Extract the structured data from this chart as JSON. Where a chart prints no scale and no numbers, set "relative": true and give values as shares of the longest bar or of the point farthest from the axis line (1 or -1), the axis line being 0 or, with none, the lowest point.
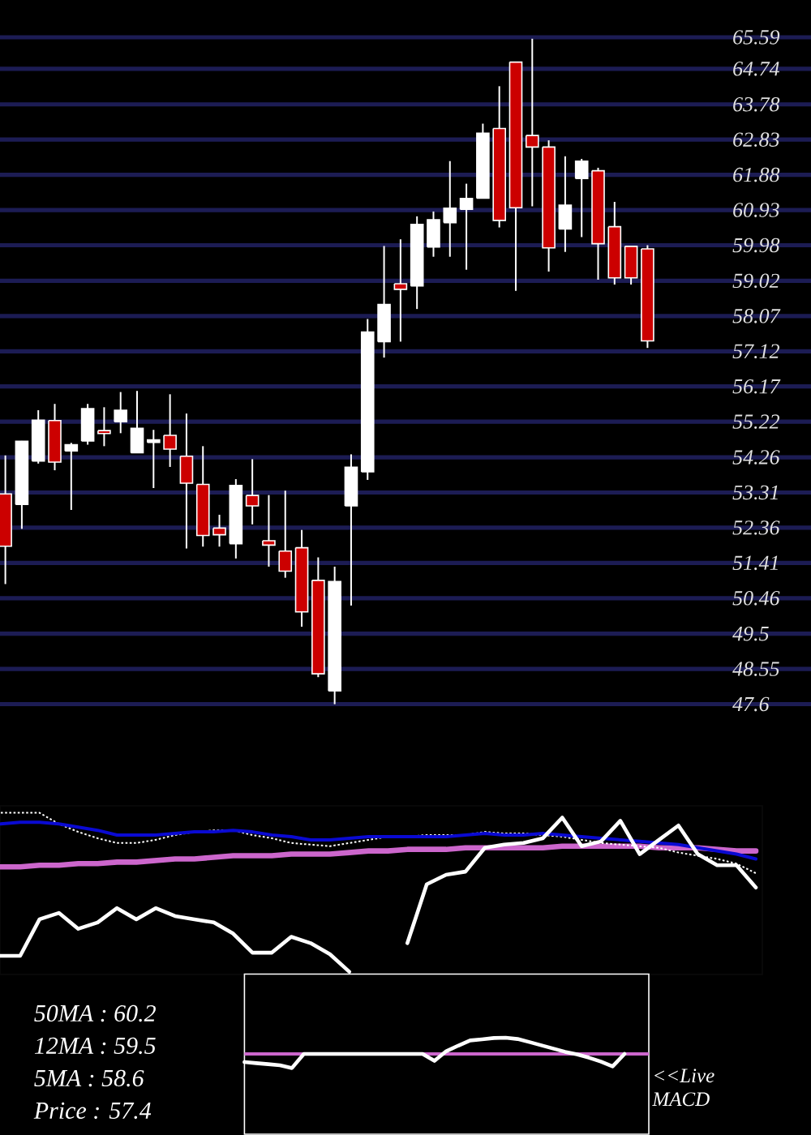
{
  "chart_data": [
    {
      "type": "candlestick",
      "categories": [
        null,
        null,
        null,
        null,
        null,
        null,
        null,
        null,
        null,
        null,
        null,
        null,
        null,
        null,
        null,
        null,
        null,
        null,
        null,
        null,
        null,
        null,
        null,
        null,
        null,
        null,
        null,
        null,
        null,
        null,
        null,
        null,
        null,
        null,
        null,
        null,
        null,
        null,
        null,
        null
      ],
      "ohlc": [
        [
          53.27,
          54.31,
          50.84,
          51.86
        ],
        [
          52.99,
          54.7,
          52.33,
          54.69
        ],
        [
          54.16,
          55.53,
          54.09,
          55.26
        ],
        [
          55.25,
          55.7,
          53.91,
          54.13
        ],
        [
          54.43,
          54.65,
          52.84,
          54.6
        ],
        [
          54.7,
          55.7,
          54.6,
          55.57
        ],
        [
          54.98,
          55.61,
          54.56,
          54.9
        ],
        [
          55.22,
          56.02,
          54.91,
          55.53
        ],
        [
          54.38,
          56.05,
          54.38,
          55.04
        ],
        [
          54.66,
          55.0,
          53.43,
          54.73
        ],
        [
          54.85,
          55.96,
          54.0,
          54.48
        ],
        [
          54.29,
          55.44,
          51.8,
          53.56
        ],
        [
          53.53,
          54.56,
          51.85,
          52.15
        ],
        [
          52.35,
          52.71,
          51.85,
          52.17
        ],
        [
          51.93,
          53.67,
          51.53,
          53.5
        ],
        [
          53.23,
          54.21,
          52.45,
          52.95
        ],
        [
          52.01,
          53.24,
          51.31,
          51.89
        ],
        [
          51.73,
          53.36,
          51.01,
          51.19
        ],
        [
          51.82,
          52.3,
          49.69,
          50.09
        ],
        [
          50.94,
          51.56,
          48.33,
          48.42
        ],
        [
          47.96,
          51.31,
          47.6,
          50.91
        ],
        [
          52.95,
          54.34,
          50.26,
          53.99
        ],
        [
          53.87,
          57.99,
          53.65,
          57.64
        ],
        [
          57.38,
          59.96,
          56.95,
          58.38
        ],
        [
          58.94,
          60.14,
          57.38,
          58.79
        ],
        [
          58.88,
          60.76,
          58.26,
          60.54
        ],
        [
          59.93,
          60.89,
          59.67,
          60.67
        ],
        [
          60.59,
          62.25,
          59.67,
          60.98
        ],
        [
          60.95,
          61.64,
          59.32,
          61.24
        ],
        [
          61.25,
          63.26,
          61.25,
          63.0
        ],
        [
          63.13,
          64.27,
          60.46,
          60.65
        ],
        [
          64.92,
          64.92,
          58.75,
          60.99
        ],
        [
          62.94,
          65.55,
          61.03,
          62.63
        ],
        [
          62.63,
          62.81,
          59.27,
          59.91
        ],
        [
          60.42,
          62.38,
          59.8,
          61.06
        ],
        [
          61.78,
          62.31,
          60.2,
          62.25
        ],
        [
          61.99,
          62.07,
          59.05,
          60.02
        ],
        [
          60.48,
          61.15,
          58.92,
          59.1
        ],
        [
          59.95,
          59.95,
          58.92,
          59.1
        ],
        [
          59.88,
          59.98,
          57.21,
          57.4
        ]
      ],
      "colors": [
        "#cc0000",
        "#ffffff",
        "#ffffff",
        "#cc0000",
        "#ffffff",
        "#ffffff",
        "#cc0000",
        "#ffffff",
        "#ffffff",
        "#ffffff",
        "#cc0000",
        "#cc0000",
        "#cc0000",
        "#cc0000",
        "#ffffff",
        "#cc0000",
        "#cc0000",
        "#cc0000",
        "#cc0000",
        "#cc0000",
        "#ffffff",
        "#ffffff",
        "#ffffff",
        "#ffffff",
        "#cc0000",
        "#ffffff",
        "#ffffff",
        "#ffffff",
        "#ffffff",
        "#ffffff",
        "#cc0000",
        "#cc0000",
        "#cc0000",
        "#cc0000",
        "#ffffff",
        "#ffffff",
        "#cc0000",
        "#cc0000",
        "#cc0000",
        "#cc0000"
      ],
      "ylim": [
        47.6,
        65.59
      ],
      "yticks": [
        47.6,
        48.55,
        49.5,
        50.46,
        51.41,
        52.36,
        53.31,
        54.26,
        55.22,
        56.17,
        57.12,
        58.07,
        59.02,
        59.98,
        60.93,
        61.88,
        62.83,
        63.78,
        64.74,
        65.59
      ],
      "grid": "y",
      "tick_labels": "y"
    },
    {
      "type": "line",
      "relative": true,
      "categories": [
        null,
        null,
        null,
        null,
        null,
        null,
        null,
        null,
        null,
        null,
        null,
        null,
        null,
        null,
        null,
        null,
        null,
        null,
        null,
        null,
        null,
        null,
        null,
        null,
        null,
        null,
        null,
        null,
        null,
        null,
        null,
        null,
        null,
        null,
        null,
        null,
        null,
        null,
        null,
        null
      ],
      "series": [
        {
          "color": "#cc66cc",
          "values": [
            0.66,
            0.66,
            0.67,
            0.67,
            0.68,
            0.68,
            0.69,
            0.69,
            0.7,
            0.71,
            0.71,
            0.72,
            0.73,
            0.73,
            0.73,
            0.74,
            0.74,
            0.74,
            0.75,
            0.76,
            0.76,
            0.77,
            0.77,
            0.77,
            0.78,
            0.78,
            0.78,
            0.78,
            0.78,
            0.79,
            0.79,
            0.79,
            0.79,
            0.79,
            0.78,
            0.78,
            0.78,
            0.77,
            0.76,
            0.76
          ]
        },
        {
          "color": "#ffffff",
          "line_style": "dotted",
          "values": [
            1.0,
            1.0,
            1.0,
            0.93,
            0.88,
            0.84,
            0.81,
            0.81,
            0.83,
            0.86,
            0.88,
            0.89,
            0.89,
            0.86,
            0.84,
            0.81,
            0.8,
            0.79,
            0.81,
            0.83,
            0.85,
            0.85,
            0.86,
            0.86,
            0.86,
            0.88,
            0.87,
            0.87,
            0.86,
            0.85,
            0.83,
            0.81,
            0.8,
            0.79,
            0.78,
            0.75,
            0.73,
            0.71,
            0.68,
            0.62
          ]
        },
        {
          "color": "#0a0ad2",
          "values": [
            0.93,
            0.94,
            0.94,
            0.93,
            0.91,
            0.89,
            0.86,
            0.86,
            0.86,
            0.87,
            0.88,
            0.88,
            0.89,
            0.88,
            0.86,
            0.85,
            0.83,
            0.83,
            0.84,
            0.85,
            0.85,
            0.85,
            0.85,
            0.85,
            0.86,
            0.87,
            0.86,
            0.86,
            0.87,
            0.86,
            0.85,
            0.84,
            0.83,
            0.82,
            0.81,
            0.8,
            0.78,
            0.76,
            0.74,
            0.71
          ]
        },
        {
          "color": "#ffffff",
          "values": [
            0.1,
            0.1,
            0.33,
            0.37,
            0.27,
            0.31,
            0.4,
            0.33,
            0.4,
            0.35,
            0.33,
            0.31,
            0.24,
            0.12,
            0.12,
            0.22,
            0.18,
            0.11,
            0.0,
            null,
            null,
            0.18,
            0.55,
            0.61,
            0.63,
            0.78,
            0.8,
            0.81,
            0.84,
            0.97,
            0.79,
            0.82,
            0.95,
            0.74,
            0.83,
            0.92,
            0.74,
            0.67,
            0.67,
            0.53
          ]
        }
      ]
    },
    {
      "type": "other",
      "annotations": [
        "50MA : 60.2",
        "12MA : 59.5",
        "5MA : 58.6",
        "Price : 57.4"
      ]
    },
    {
      "type": "line",
      "relative": true,
      "categories": [
        null,
        null,
        null,
        null,
        null,
        null,
        null,
        null,
        null,
        null,
        null,
        null,
        null,
        null,
        null,
        null,
        null,
        null,
        null,
        null,
        null,
        null,
        null,
        null,
        null,
        null,
        null,
        null,
        null,
        null,
        null,
        null,
        null
      ],
      "series": [
        {
          "color": "#ffffff",
          "values": [
            -0.5,
            -0.57,
            -0.63,
            -0.7,
            -0.87,
            0,
            0,
            0,
            0,
            0,
            0,
            0,
            0,
            0,
            0,
            0,
            -0.43,
            0.17,
            0.51,
            0.83,
            0.9,
            0.98,
            1.0,
            0.92,
            0.73,
            0.53,
            0.33,
            0.13,
            -0.03,
            -0.23,
            -0.47,
            -0.77,
            0
          ]
        }
      ],
      "ref_lines": [
        {
          "axis": "y",
          "value": 0,
          "color": "#cc66cc"
        }
      ],
      "annotations": [
        "<<Live MACD"
      ]
    }
  ]
}
